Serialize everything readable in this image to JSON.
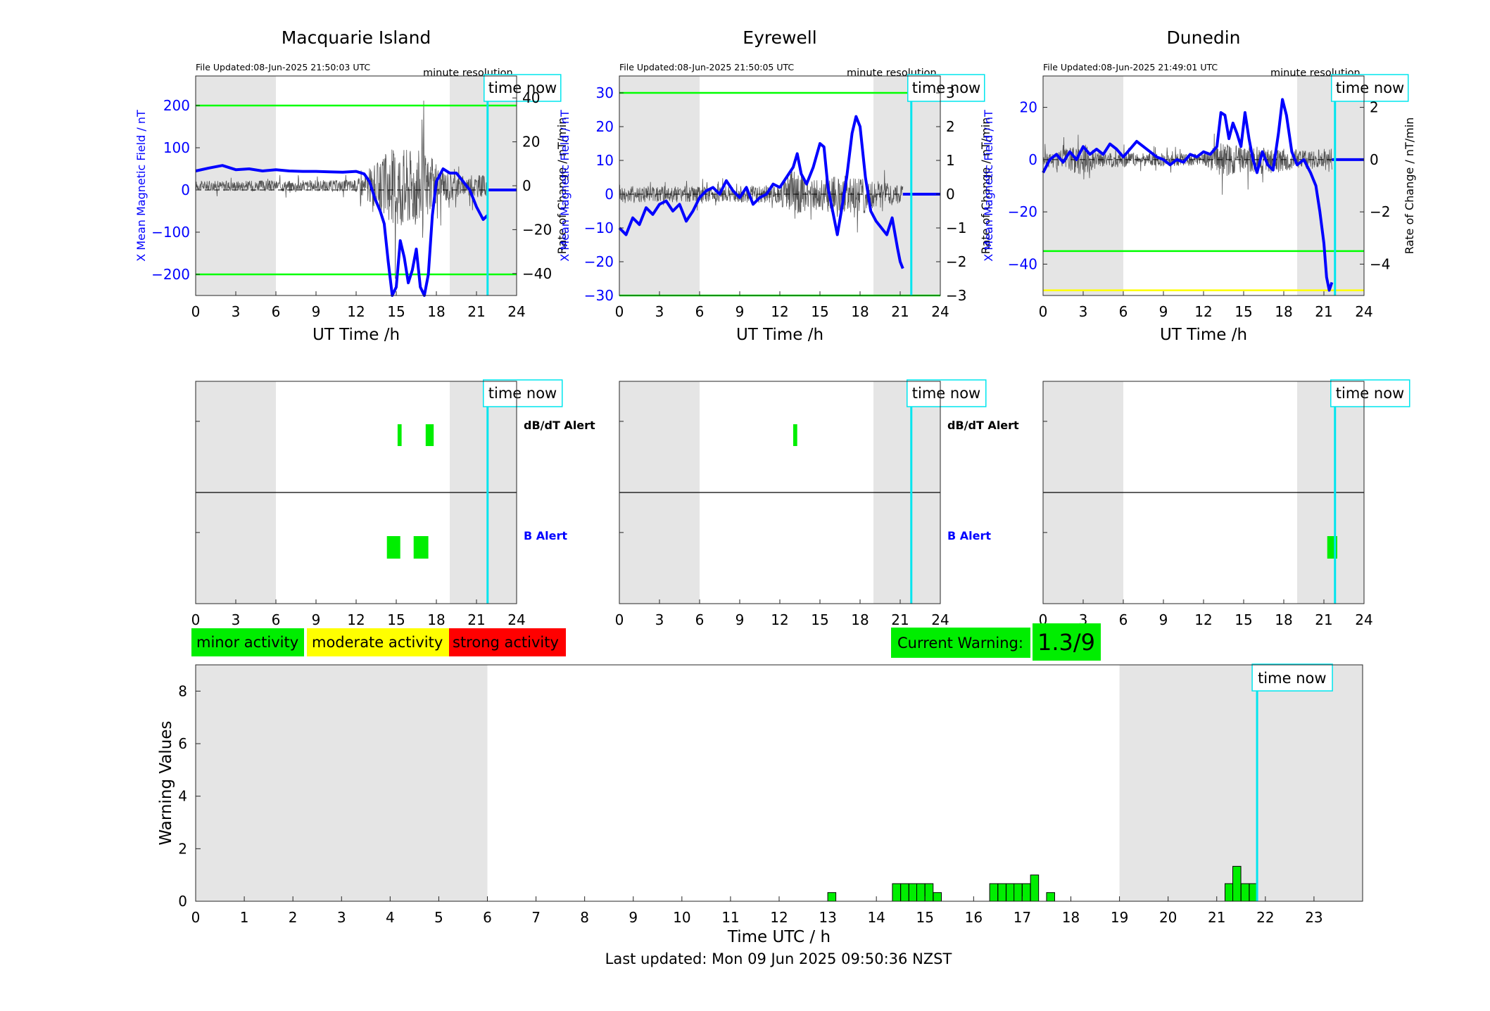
{
  "colors": {
    "b_line": "#0000ff",
    "rate_line": "#555555",
    "threshold_green": "#00ff00",
    "threshold_yellow": "#ffff00",
    "minor": "#00ee00",
    "moderate": "#ffff00",
    "strong": "#ff0000",
    "shade": "#e5e5e5",
    "time_now": "#00e5ee",
    "axis": "#262626"
  },
  "stations": [
    {
      "name": "Macquarie Island",
      "file_updated": "File Updated:08-Jun-2025 21:50:03 UTC",
      "resolution": "minute resolution",
      "time_now_label": "time now",
      "xlabel": "UT Time /h",
      "ylabel_left": "X Mean Magnetic Field / nT",
      "ylabel_right": "Rate of Change / nT/min",
      "ylim_left": [
        -250,
        270
      ],
      "ylim_right": [
        -50,
        50
      ],
      "yticks_left": [
        -200,
        -100,
        0,
        100,
        200
      ],
      "yticks_right": [
        -40,
        -20,
        0,
        20,
        40
      ],
      "xlim": [
        0,
        24
      ],
      "xticks": [
        0,
        3,
        6,
        9,
        12,
        15,
        18,
        21,
        24
      ],
      "shaded": [
        [
          0,
          6
        ],
        [
          19,
          24
        ]
      ],
      "time_now": 21.83,
      "thresholds": [
        {
          "value": 200,
          "color": "green"
        },
        {
          "value": -200,
          "color": "green"
        }
      ],
      "b_series": [
        [
          0,
          45
        ],
        [
          1,
          52
        ],
        [
          2,
          58
        ],
        [
          3,
          48
        ],
        [
          4,
          50
        ],
        [
          5,
          45
        ],
        [
          6,
          48
        ],
        [
          7,
          45
        ],
        [
          8,
          44
        ],
        [
          9,
          44
        ],
        [
          10,
          43
        ],
        [
          11,
          42
        ],
        [
          12,
          44
        ],
        [
          12.6,
          38
        ],
        [
          13,
          20
        ],
        [
          13.4,
          -20
        ],
        [
          13.8,
          -50
        ],
        [
          14.1,
          -80
        ],
        [
          14.4,
          -170
        ],
        [
          14.7,
          -250
        ],
        [
          15,
          -230
        ],
        [
          15.3,
          -120
        ],
        [
          15.6,
          -160
        ],
        [
          15.9,
          -220
        ],
        [
          16.2,
          -190
        ],
        [
          16.5,
          -140
        ],
        [
          16.8,
          -230
        ],
        [
          17.1,
          -250
        ],
        [
          17.4,
          -200
        ],
        [
          17.7,
          -60
        ],
        [
          18,
          20
        ],
        [
          18.5,
          50
        ],
        [
          19,
          40
        ],
        [
          19.5,
          40
        ],
        [
          20,
          20
        ],
        [
          20.5,
          0
        ],
        [
          21,
          -40
        ],
        [
          21.5,
          -70
        ],
        [
          21.83,
          -60
        ]
      ],
      "b_extension": [
        [
          21.83,
          0
        ],
        [
          24,
          0
        ]
      ],
      "rate_amp": [
        [
          0,
          5
        ],
        [
          12,
          6
        ],
        [
          13,
          18
        ],
        [
          14,
          28
        ],
        [
          15,
          45
        ],
        [
          16,
          40
        ],
        [
          17,
          40
        ],
        [
          18,
          22
        ],
        [
          19,
          15
        ],
        [
          20,
          10
        ],
        [
          21,
          12
        ],
        [
          21.83,
          10
        ]
      ],
      "dbdt_alerts": [
        {
          "start": 15.1,
          "end": 15.4,
          "level": "minor"
        },
        {
          "start": 17.2,
          "end": 17.8,
          "level": "minor"
        }
      ],
      "b_alerts": [
        {
          "start": 14.3,
          "end": 15.3,
          "level": "minor"
        },
        {
          "start": 16.3,
          "end": 17.4,
          "level": "minor"
        }
      ]
    },
    {
      "name": "Eyrewell",
      "file_updated": "File Updated:08-Jun-2025 21:50:05 UTC",
      "resolution": "minute resolution",
      "time_now_label": "time now",
      "xlabel": "UT Time /h",
      "ylabel_left": "X Mean Magnetic Field / nT",
      "ylabel_right": "Rate of Change / nT/min",
      "ylim_left": [
        -30,
        35
      ],
      "ylim_right": [
        -3,
        3.5
      ],
      "yticks_left": [
        -30,
        -20,
        -10,
        0,
        10,
        20,
        30
      ],
      "yticks_right": [
        -3,
        -2,
        -1,
        0,
        1,
        2,
        3
      ],
      "xlim": [
        0,
        24
      ],
      "xticks": [
        0,
        3,
        6,
        9,
        12,
        15,
        18,
        21,
        24
      ],
      "shaded": [
        [
          0,
          6
        ],
        [
          19,
          24
        ]
      ],
      "time_now": 21.83,
      "thresholds": [
        {
          "value": 30,
          "color": "green"
        },
        {
          "value": -30,
          "color": "green"
        }
      ],
      "b_series": [
        [
          0,
          -10
        ],
        [
          0.5,
          -12
        ],
        [
          1,
          -7
        ],
        [
          1.5,
          -9
        ],
        [
          2,
          -4
        ],
        [
          2.5,
          -6
        ],
        [
          3,
          -3
        ],
        [
          3.5,
          -2
        ],
        [
          4,
          -5
        ],
        [
          4.5,
          -3
        ],
        [
          5,
          -8
        ],
        [
          5.5,
          -5
        ],
        [
          6,
          -1
        ],
        [
          6.5,
          1
        ],
        [
          7,
          2
        ],
        [
          7.5,
          0
        ],
        [
          8,
          4
        ],
        [
          8.5,
          1
        ],
        [
          9,
          -1
        ],
        [
          9.5,
          2
        ],
        [
          10,
          -3
        ],
        [
          10.5,
          -1
        ],
        [
          11,
          0
        ],
        [
          11.5,
          3
        ],
        [
          12,
          2
        ],
        [
          12.5,
          5
        ],
        [
          13,
          8
        ],
        [
          13.3,
          12
        ],
        [
          13.6,
          6
        ],
        [
          14,
          3
        ],
        [
          14.5,
          8
        ],
        [
          15,
          15
        ],
        [
          15.3,
          14
        ],
        [
          15.6,
          2
        ],
        [
          16,
          -6
        ],
        [
          16.3,
          -12
        ],
        [
          16.6,
          -5
        ],
        [
          17,
          5
        ],
        [
          17.4,
          18
        ],
        [
          17.7,
          23
        ],
        [
          18,
          20
        ],
        [
          18.4,
          5
        ],
        [
          18.8,
          -5
        ],
        [
          19.2,
          -8
        ],
        [
          19.6,
          -10
        ],
        [
          20,
          -12
        ],
        [
          20.4,
          -7
        ],
        [
          20.8,
          -16
        ],
        [
          21,
          -20
        ],
        [
          21.2,
          -22
        ]
      ],
      "b_extension": [
        [
          21.2,
          0
        ],
        [
          24,
          0
        ]
      ],
      "rate_amp": [
        [
          0,
          0.6
        ],
        [
          6,
          0.5
        ],
        [
          12,
          0.6
        ],
        [
          13,
          2.0
        ],
        [
          14,
          1.0
        ],
        [
          16,
          1.2
        ],
        [
          18,
          1.4
        ],
        [
          19,
          1.0
        ],
        [
          20,
          0.8
        ],
        [
          21.2,
          0.6
        ]
      ],
      "dbdt_alerts": [
        {
          "start": 13.0,
          "end": 13.3,
          "level": "minor"
        }
      ],
      "b_alerts": []
    },
    {
      "name": "Dunedin",
      "file_updated": "File Updated:08-Jun-2025 21:49:01 UTC",
      "resolution": "minute resolution",
      "time_now_label": "time now",
      "xlabel": "UT Time /h",
      "ylabel_left": "X Mean Magnetic Field / nT",
      "ylabel_right": "Rate of Change / nT/min",
      "ylim_left": [
        -52,
        32
      ],
      "ylim_right": [
        -5.2,
        3.2
      ],
      "yticks_left": [
        -40,
        -20,
        0,
        20
      ],
      "yticks_right": [
        -4,
        -2,
        0,
        2
      ],
      "xlim": [
        0,
        24
      ],
      "xticks": [
        0,
        3,
        6,
        9,
        12,
        15,
        18,
        21,
        24
      ],
      "shaded": [
        [
          0,
          6
        ],
        [
          19,
          24
        ]
      ],
      "time_now": 21.83,
      "thresholds": [
        {
          "value": -35,
          "color": "green"
        },
        {
          "value": -50,
          "color": "yellow"
        }
      ],
      "b_series": [
        [
          0,
          -5
        ],
        [
          0.5,
          0
        ],
        [
          1,
          2
        ],
        [
          1.5,
          -1
        ],
        [
          2,
          3
        ],
        [
          2.5,
          0
        ],
        [
          3,
          5
        ],
        [
          3.5,
          2
        ],
        [
          4,
          4
        ],
        [
          4.5,
          2
        ],
        [
          5,
          6
        ],
        [
          5.5,
          4
        ],
        [
          6,
          1
        ],
        [
          6.5,
          4
        ],
        [
          7,
          7
        ],
        [
          7.5,
          5
        ],
        [
          8,
          3
        ],
        [
          8.5,
          1
        ],
        [
          9,
          0
        ],
        [
          9.5,
          -2
        ],
        [
          10,
          0
        ],
        [
          10.5,
          -1
        ],
        [
          11,
          2
        ],
        [
          11.5,
          1
        ],
        [
          12,
          3
        ],
        [
          12.5,
          2
        ],
        [
          13,
          5
        ],
        [
          13.3,
          18
        ],
        [
          13.6,
          17
        ],
        [
          13.9,
          8
        ],
        [
          14.2,
          14
        ],
        [
          14.5,
          10
        ],
        [
          14.8,
          5
        ],
        [
          15.1,
          18
        ],
        [
          15.4,
          8
        ],
        [
          15.7,
          0
        ],
        [
          16,
          -5
        ],
        [
          16.4,
          3
        ],
        [
          16.8,
          -2
        ],
        [
          17.2,
          -4
        ],
        [
          17.6,
          10
        ],
        [
          17.9,
          23
        ],
        [
          18.2,
          17
        ],
        [
          18.6,
          3
        ],
        [
          19,
          -2
        ],
        [
          19.5,
          0
        ],
        [
          20,
          -5
        ],
        [
          20.4,
          -10
        ],
        [
          20.7,
          -20
        ],
        [
          21,
          -32
        ],
        [
          21.2,
          -45
        ],
        [
          21.4,
          -50
        ],
        [
          21.6,
          -47
        ]
      ],
      "b_extension": [
        [
          21.6,
          0
        ],
        [
          24,
          0
        ]
      ],
      "rate_amp": [
        [
          0,
          0.6
        ],
        [
          2,
          1.0
        ],
        [
          3,
          1.4
        ],
        [
          4,
          0.7
        ],
        [
          12,
          0.5
        ],
        [
          13,
          1.4
        ],
        [
          15,
          1.2
        ],
        [
          17,
          1.2
        ],
        [
          19,
          0.8
        ],
        [
          20,
          0.8
        ],
        [
          21.6,
          1.0
        ]
      ],
      "dbdt_alerts": [],
      "b_alerts": [
        {
          "start": 21.25,
          "end": 22.0,
          "level": "minor"
        }
      ]
    }
  ],
  "alert_panel": {
    "dbdt_label": "dB/dT Alert",
    "b_label": "B Alert",
    "time_now_label": "time now"
  },
  "legend": {
    "minor": "minor activity",
    "moderate": "moderate activity",
    "strong": "strong activity"
  },
  "current_warning": {
    "label": "Current Warning:",
    "value": "1.3/9"
  },
  "warning_chart": {
    "type": "bar",
    "ylabel": "Warning Values",
    "xlabel": "Time UTC / h",
    "xlim": [
      0,
      24
    ],
    "ylim": [
      0,
      9
    ],
    "yticks": [
      0,
      2,
      4,
      6,
      8
    ],
    "xticks": [
      0,
      1,
      2,
      3,
      4,
      5,
      6,
      7,
      8,
      9,
      10,
      11,
      12,
      13,
      14,
      15,
      16,
      17,
      18,
      19,
      20,
      21,
      22,
      23
    ],
    "shaded": [
      [
        0,
        6
      ],
      [
        19,
        24
      ]
    ],
    "time_now": 21.83,
    "time_now_label": "time now",
    "bar_width_h": 0.1667,
    "bars": [
      [
        13.0,
        0.33
      ],
      [
        14.33,
        0.67
      ],
      [
        14.5,
        0.67
      ],
      [
        14.67,
        0.67
      ],
      [
        14.83,
        0.67
      ],
      [
        15.0,
        0.67
      ],
      [
        15.17,
        0.33
      ],
      [
        16.33,
        0.67
      ],
      [
        16.5,
        0.67
      ],
      [
        16.67,
        0.67
      ],
      [
        16.83,
        0.67
      ],
      [
        17.0,
        0.67
      ],
      [
        17.17,
        1.0
      ],
      [
        17.5,
        0.33
      ],
      [
        21.17,
        0.67
      ],
      [
        21.33,
        1.33
      ],
      [
        21.5,
        0.67
      ],
      [
        21.67,
        0.67
      ]
    ]
  },
  "footer": "Last updated: Mon 09 Jun 2025 09:50:36 NZST"
}
